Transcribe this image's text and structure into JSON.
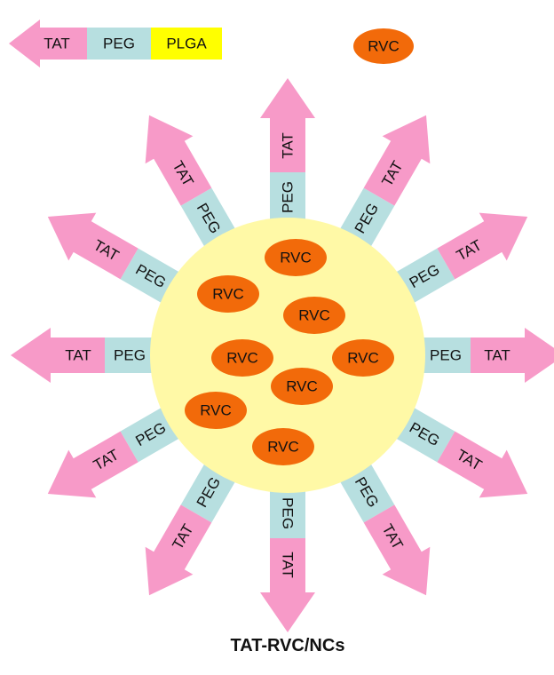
{
  "legend": {
    "segments": [
      "TAT",
      "PEG",
      "PLGA"
    ],
    "drug": "RVC"
  },
  "arms": [
    {
      "peg": "PEG",
      "tat": "TAT"
    },
    {
      "peg": "PEG",
      "tat": "TAT"
    },
    {
      "peg": "PEG",
      "tat": "TAT"
    },
    {
      "peg": "PEG",
      "tat": "TAT"
    },
    {
      "peg": "PEG",
      "tat": "TAT"
    },
    {
      "peg": "PEG",
      "tat": "TAT"
    },
    {
      "peg": "PEG",
      "tat": "TAT"
    },
    {
      "peg": "PEG",
      "tat": "TAT"
    },
    {
      "peg": "PEG",
      "tat": "TAT"
    },
    {
      "peg": "PEG",
      "tat": "TAT"
    },
    {
      "peg": "PEG",
      "tat": "TAT"
    },
    {
      "peg": "PEG",
      "tat": "TAT"
    }
  ],
  "core": [
    "RVC",
    "RVC",
    "RVC",
    "RVC",
    "RVC",
    "RVC",
    "RVC",
    "RVC"
  ],
  "caption": "TAT-RVC/NCs"
}
